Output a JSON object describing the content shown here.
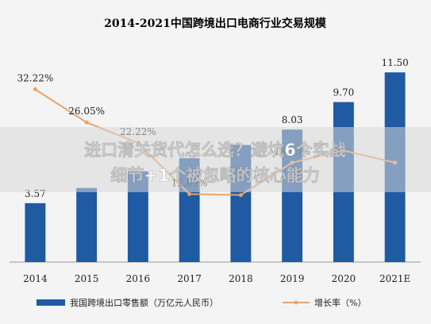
{
  "chart_data": {
    "type": "bar",
    "title": "2014-2021中国跨境出口电商行业交易规模",
    "categories": [
      "2014",
      "2015",
      "2016",
      "2017",
      "2018",
      "2019",
      "2020",
      "2021E"
    ],
    "series": [
      {
        "name": "我国跨境出口零售额（万亿元人民币）",
        "type": "bar",
        "values": [
          3.57,
          4.49,
          5.5,
          6.3,
          7.1,
          8.03,
          9.7,
          11.5
        ],
        "labels": [
          "3.57",
          "",
          "",
          "",
          "",
          "8.03",
          "9.70",
          "11.50"
        ]
      },
      {
        "name": "增长率（%）",
        "type": "line",
        "values": [
          32.22,
          26.05,
          22.22,
          12.69,
          12.5,
          18.55,
          20.8,
          18.56
        ],
        "labels": [
          "32.22%",
          "26.05%",
          "22.22%",
          "12.69%",
          "",
          "18.55%",
          "",
          ""
        ]
      }
    ],
    "ylim_left": [
      0,
      13
    ],
    "ylim_right": [
      0,
      40
    ],
    "legend_position": "bottom",
    "grid": false
  },
  "overlay": {
    "line1": "进口清关货代怎么选？避坑6个实战",
    "line2": "细节+1个被忽略的核心能力"
  },
  "colors": {
    "bar": "#1f5aa3",
    "line": "#e8a36a",
    "banner": "#dcdcdc"
  }
}
